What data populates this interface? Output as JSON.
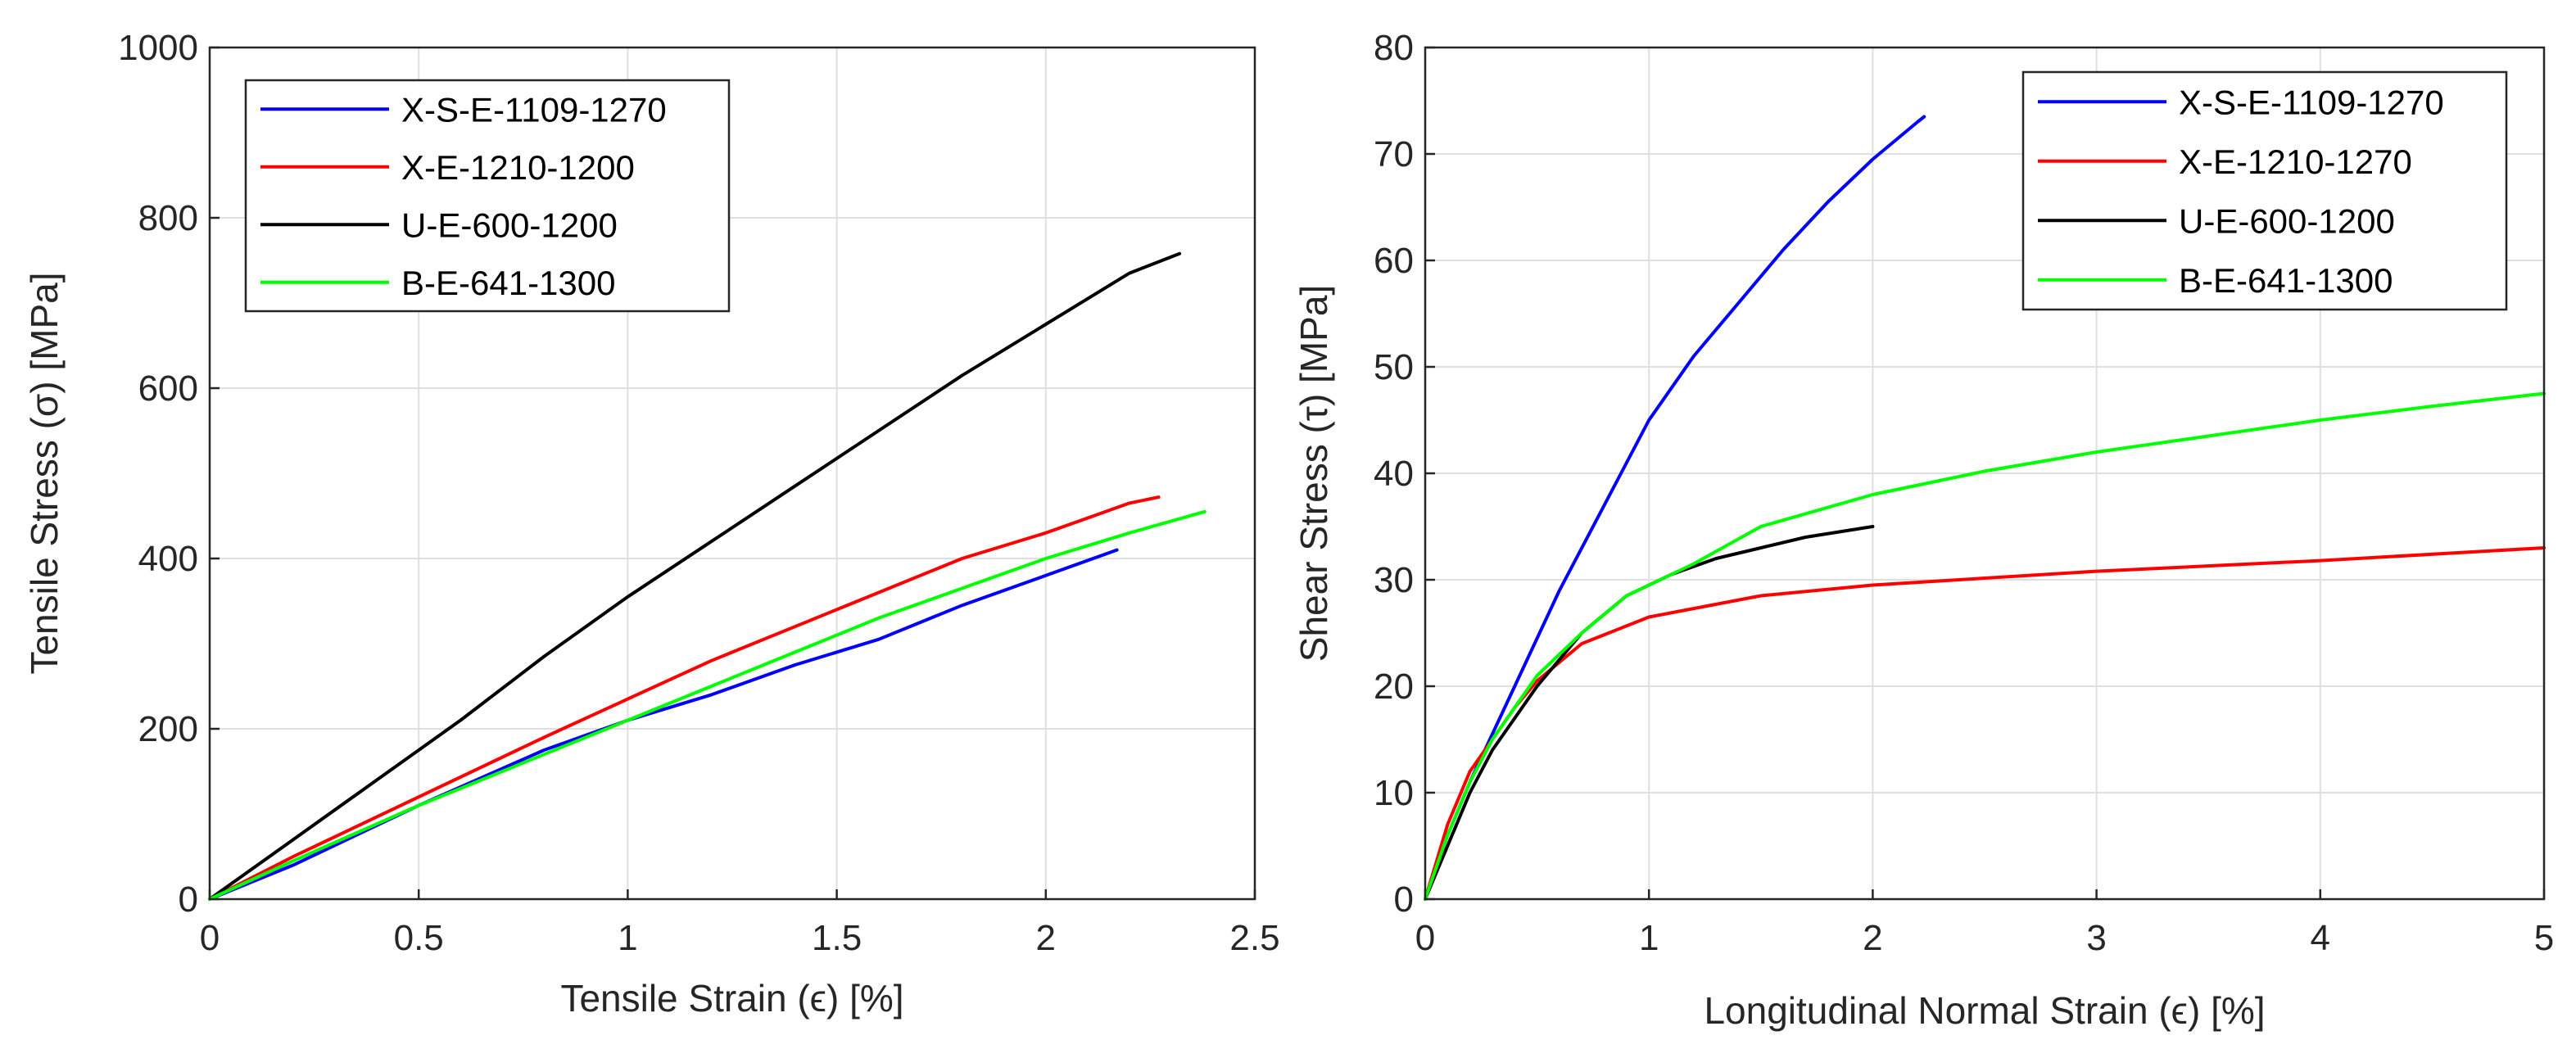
{
  "chart_data": [
    {
      "type": "line",
      "xlabel": "Tensile Strain (ϵ) [%]",
      "ylabel": "Tensile Stress (σ) [MPa]",
      "xlim": [
        0,
        2.5
      ],
      "ylim": [
        0,
        1000
      ],
      "xticks": [
        "0",
        "0.5",
        "1",
        "1.5",
        "2",
        "2.5"
      ],
      "yticks": [
        "0",
        "200",
        "400",
        "600",
        "800",
        "1000"
      ],
      "grid": true,
      "legend_position": "top-left",
      "series": [
        {
          "name": "X-S-E-1109-1270",
          "color": "#0000ff",
          "x": [
            0,
            0.2,
            0.5,
            0.8,
            1.0,
            1.2,
            1.4,
            1.6,
            1.8,
            2.0,
            2.17
          ],
          "y": [
            0,
            40,
            110,
            175,
            210,
            240,
            275,
            305,
            345,
            380,
            410
          ]
        },
        {
          "name": "X-E-1210-1200",
          "color": "#ff0000",
          "x": [
            0,
            0.2,
            0.5,
            0.8,
            1.0,
            1.2,
            1.4,
            1.6,
            1.8,
            2.0,
            2.2,
            2.27
          ],
          "y": [
            0,
            50,
            120,
            190,
            235,
            280,
            320,
            360,
            400,
            430,
            465,
            472
          ]
        },
        {
          "name": "U-E-600-1200",
          "color": "#000000",
          "x": [
            0,
            0.2,
            0.4,
            0.6,
            0.8,
            1.0,
            1.2,
            1.4,
            1.6,
            1.8,
            2.0,
            2.2,
            2.32
          ],
          "y": [
            0,
            70,
            140,
            210,
            285,
            355,
            420,
            485,
            550,
            615,
            675,
            735,
            758
          ]
        },
        {
          "name": "B-E-641-1300",
          "color": "#00ff00",
          "x": [
            0,
            0.2,
            0.5,
            0.8,
            1.0,
            1.2,
            1.4,
            1.6,
            1.8,
            2.0,
            2.2,
            2.38
          ],
          "y": [
            0,
            45,
            110,
            170,
            210,
            250,
            290,
            330,
            365,
            400,
            430,
            455
          ]
        }
      ]
    },
    {
      "type": "line",
      "xlabel": "Longitudinal Normal Strain (ϵ) [%]",
      "ylabel": "Shear Stress (τ) [MPa]",
      "xlim": [
        0,
        5
      ],
      "ylim": [
        0,
        80
      ],
      "xticks": [
        "0",
        "1",
        "2",
        "3",
        "4",
        "5"
      ],
      "yticks": [
        "0",
        "10",
        "20",
        "30",
        "40",
        "50",
        "60",
        "70",
        "80"
      ],
      "grid": true,
      "legend_position": "top-right",
      "series": [
        {
          "name": "X-S-E-1109-1270",
          "color": "#0000ff",
          "x": [
            0,
            0.1,
            0.2,
            0.4,
            0.6,
            0.8,
            1.0,
            1.2,
            1.4,
            1.6,
            1.8,
            2.0,
            2.2,
            2.23
          ],
          "y": [
            0,
            6,
            11,
            20,
            29,
            37,
            45,
            51,
            56,
            61,
            65.5,
            69.5,
            73,
            73.5
          ]
        },
        {
          "name": "X-E-1210-1270",
          "color": "#ff0000",
          "x": [
            0,
            0.1,
            0.2,
            0.3,
            0.4,
            0.5,
            0.7,
            1.0,
            1.5,
            2.0,
            3.0,
            4.0,
            5.0
          ],
          "y": [
            0,
            7,
            12,
            15,
            18,
            20.5,
            24,
            26.5,
            28.5,
            29.5,
            30.8,
            31.8,
            33
          ]
        },
        {
          "name": "U-E-600-1200",
          "color": "#000000",
          "x": [
            0,
            0.1,
            0.2,
            0.3,
            0.5,
            0.7,
            0.9,
            1.1,
            1.3,
            1.5,
            1.7,
            2.0
          ],
          "y": [
            0,
            5,
            10,
            14,
            20,
            25,
            28.5,
            30.5,
            32,
            33,
            34,
            35
          ]
        },
        {
          "name": "B-E-641-1300",
          "color": "#00ff00",
          "x": [
            0,
            0.1,
            0.2,
            0.3,
            0.5,
            0.7,
            0.9,
            1.2,
            1.5,
            2.0,
            2.5,
            3.0,
            3.5,
            4.0,
            4.5,
            5.0
          ],
          "y": [
            0,
            6,
            11,
            15,
            21,
            25,
            28.5,
            31.5,
            35,
            38,
            40.2,
            42,
            43.5,
            45,
            46.3,
            47.5
          ]
        }
      ]
    }
  ]
}
